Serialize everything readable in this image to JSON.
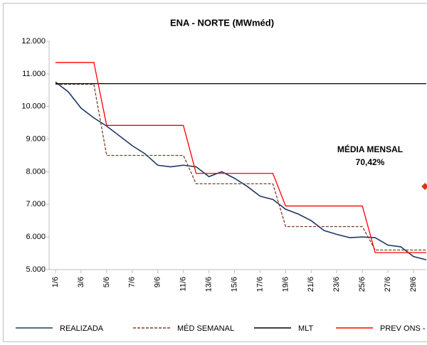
{
  "chart_data": {
    "type": "line",
    "title": "ENA - NORTE (MWméd)",
    "x": [
      1,
      2,
      3,
      4,
      5,
      6,
      7,
      8,
      9,
      10,
      11,
      12,
      13,
      14,
      15,
      16,
      17,
      18,
      19,
      20,
      21,
      22,
      23,
      24,
      25,
      26,
      27,
      28,
      29,
      30
    ],
    "xlim": [
      0.5,
      30
    ],
    "xticks": [
      {
        "value": 1,
        "label": "1/6"
      },
      {
        "value": 3,
        "label": "3/6"
      },
      {
        "value": 5,
        "label": "5/6"
      },
      {
        "value": 7,
        "label": "7/6"
      },
      {
        "value": 9,
        "label": "9/6"
      },
      {
        "value": 11,
        "label": "11/6"
      },
      {
        "value": 13,
        "label": "13/6"
      },
      {
        "value": 15,
        "label": "15/6"
      },
      {
        "value": 17,
        "label": "17/6"
      },
      {
        "value": 19,
        "label": "19/6"
      },
      {
        "value": 21,
        "label": "21/6"
      },
      {
        "value": 23,
        "label": "23/6"
      },
      {
        "value": 25,
        "label": "25/6"
      },
      {
        "value": 27,
        "label": "27/6"
      },
      {
        "value": 29,
        "label": "29/6"
      }
    ],
    "ylim": [
      5000,
      12000
    ],
    "yticks": [
      {
        "value": 5000,
        "label": "5.000"
      },
      {
        "value": 6000,
        "label": "6.000"
      },
      {
        "value": 7000,
        "label": "7.000"
      },
      {
        "value": 8000,
        "label": "8.000"
      },
      {
        "value": 9000,
        "label": "9.000"
      },
      {
        "value": 10000,
        "label": "10.000"
      },
      {
        "value": 11000,
        "label": "11.000"
      },
      {
        "value": 12000,
        "label": "12.000"
      }
    ],
    "series": [
      {
        "name": "REALIZADA",
        "color": "#1f3864",
        "dash": false,
        "values": [
          10750,
          10450,
          9950,
          9650,
          9400,
          9100,
          8800,
          8550,
          8200,
          8150,
          8200,
          8150,
          7850,
          8000,
          7800,
          7550,
          7250,
          7150,
          6850,
          6700,
          6500,
          6200,
          6080,
          5980,
          6000,
          5980,
          5750,
          5700,
          5400,
          5300
        ]
      },
      {
        "name": "MÉD SEMANAL",
        "color": "#7b3f2a",
        "dash": true,
        "values": [
          10680,
          10680,
          10680,
          10680,
          8500,
          8500,
          8500,
          8500,
          8500,
          8500,
          8500,
          7630,
          7630,
          7630,
          7630,
          7630,
          7630,
          7630,
          6320,
          6320,
          6320,
          6320,
          6320,
          6320,
          6320,
          5600,
          5600,
          5600,
          5600,
          5600
        ]
      },
      {
        "name": "MLT",
        "color": "#000000",
        "dash": false,
        "values": [
          10700,
          10700,
          10700,
          10700,
          10700,
          10700,
          10700,
          10700,
          10700,
          10700,
          10700,
          10700,
          10700,
          10700,
          10700,
          10700,
          10700,
          10700,
          10700,
          10700,
          10700,
          10700,
          10700,
          10700,
          10700,
          10700,
          10700,
          10700,
          10700,
          10700
        ]
      },
      {
        "name": "PREV ONS - PMO",
        "color": "#ff0000",
        "dash": false,
        "values": [
          11350,
          11350,
          11350,
          11350,
          9420,
          9420,
          9420,
          9420,
          9420,
          9420,
          9420,
          7950,
          7950,
          7950,
          7950,
          7950,
          7950,
          7950,
          6950,
          6950,
          6950,
          6950,
          6950,
          6950,
          6950,
          5520,
          5520,
          5520,
          5520,
          5520
        ]
      }
    ],
    "annotation": [
      "MÉDIA MENSAL",
      "70,42%"
    ],
    "marker": {
      "x": 29.9,
      "y": 7550,
      "color": "#e03020"
    }
  }
}
